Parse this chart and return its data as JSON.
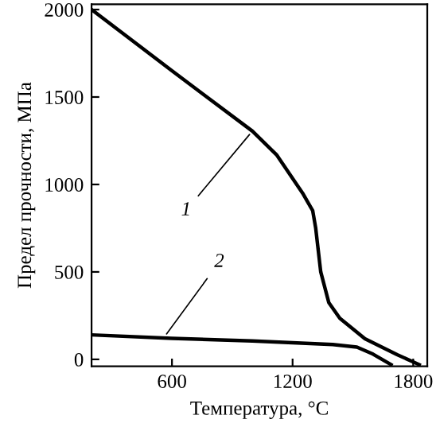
{
  "chart_data": {
    "type": "line",
    "xlabel": "Температура, °C",
    "ylabel": "Предел прочности, МПа",
    "xlim": [
      200,
      1870
    ],
    "ylim": [
      -40,
      2030
    ],
    "xticks": [
      600,
      1200,
      1800
    ],
    "yticks": [
      0,
      500,
      1000,
      1500,
      2000
    ],
    "grid": false,
    "legend": false,
    "marker": "none",
    "line_style": "solid",
    "series": [
      {
        "color": "#000000",
        "x": [
          200,
          600,
          1000,
          1120,
          1250,
          1300,
          1315,
          1340,
          1380,
          1435,
          1560,
          1720,
          1830
        ],
        "values": [
          2000,
          1650,
          1305,
          1170,
          950,
          850,
          750,
          500,
          325,
          235,
          118,
          27,
          -30
        ]
      },
      {
        "color": "#000000",
        "x": [
          200,
          600,
          1000,
          1400,
          1520,
          1600,
          1690
        ],
        "values": [
          140,
          120,
          105,
          85,
          70,
          30,
          -30
        ]
      }
    ],
    "annotations": [
      {
        "text": "1",
        "x": 1000,
        "y": 1305
      },
      {
        "text": "2",
        "x": 560,
        "y": 125
      }
    ]
  }
}
